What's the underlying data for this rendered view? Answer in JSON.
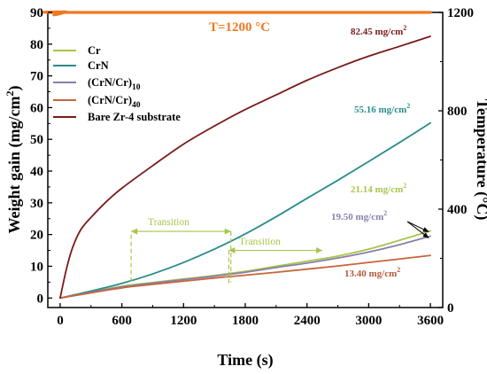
{
  "chart_data": {
    "type": "line",
    "x_axis": {
      "label": "Time (s)",
      "range": [
        -120,
        3720
      ],
      "ticks": [
        0,
        600,
        1200,
        1800,
        2400,
        3000,
        3600
      ]
    },
    "y_axis_left": {
      "label": "Weight gain (mg/cm",
      "label_sup": "2",
      "label_end": ")",
      "range": [
        -3,
        90
      ],
      "ticks": [
        0,
        10,
        20,
        30,
        40,
        50,
        60,
        70,
        80,
        90
      ]
    },
    "y_axis_right": {
      "label": "Temperature (°C)",
      "range": [
        0,
        1200
      ],
      "ticks": [
        0,
        400,
        800,
        1200
      ]
    },
    "grid": false,
    "legend_position": "top-left",
    "series": [
      {
        "name": "Cr",
        "color": "#a6c64a",
        "axis": "left",
        "x": [
          0,
          300,
          600,
          900,
          1200,
          1500,
          1800,
          2100,
          2400,
          2700,
          3000,
          3300,
          3600
        ],
        "y": [
          0,
          1.9,
          3.7,
          4.9,
          6.0,
          7.1,
          8.4,
          10.0,
          11.6,
          13.2,
          15.4,
          18.2,
          21.14
        ]
      },
      {
        "name": "CrN",
        "color": "#2a8c8c",
        "axis": "left",
        "x": [
          0,
          300,
          600,
          900,
          1200,
          1500,
          1800,
          2100,
          2400,
          2700,
          3000,
          3300,
          3600
        ],
        "y": [
          0,
          2.2,
          4.6,
          7.6,
          11.2,
          15.4,
          20.2,
          25.6,
          31.4,
          37.1,
          43.0,
          49.0,
          55.16
        ]
      },
      {
        "name": "(CrN/Cr)",
        "name_sub": "10",
        "color": "#8a7fa8",
        "axis": "left",
        "x": [
          0,
          300,
          600,
          900,
          1200,
          1500,
          1800,
          2100,
          2400,
          2700,
          3000,
          3300,
          3600
        ],
        "y": [
          0,
          1.8,
          3.5,
          4.7,
          5.8,
          6.9,
          8.1,
          9.6,
          11.0,
          12.6,
          14.5,
          16.8,
          19.5
        ]
      },
      {
        "name": "(CrN/Cr)",
        "name_sub": "40",
        "color": "#c8643a",
        "axis": "left",
        "x": [
          0,
          300,
          600,
          900,
          1200,
          1500,
          1800,
          2100,
          2400,
          2700,
          3000,
          3300,
          3600
        ],
        "y": [
          0,
          1.6,
          3.2,
          4.3,
          5.3,
          6.3,
          7.2,
          8.1,
          9.1,
          10.1,
          11.2,
          12.3,
          13.4
        ]
      },
      {
        "name": "Bare Zr-4 substrate",
        "color": "#7a1a1a",
        "axis": "left",
        "x": [
          0,
          60,
          120,
          200,
          300,
          450,
          600,
          900,
          1200,
          1500,
          1800,
          2100,
          2400,
          2700,
          3000,
          3300,
          3600
        ],
        "y": [
          0,
          9.0,
          15.8,
          21.5,
          25.4,
          30.4,
          34.6,
          41.7,
          48.5,
          54.2,
          59.4,
          64.0,
          68.6,
          72.6,
          76.2,
          79.3,
          82.45
        ]
      },
      {
        "name": "",
        "color": "#f07820",
        "axis": "right",
        "stroke": 3.2,
        "x": [
          -60,
          0,
          60,
          120,
          3600
        ],
        "y": [
          1190,
          1195,
          1202,
          1200,
          1200
        ]
      }
    ],
    "annotations": [
      {
        "text": "T=1200 °C",
        "color": "#f07820"
      },
      {
        "text": "82.45 mg/cm",
        "sup": "2",
        "color": "#7a1a1a"
      },
      {
        "text": "55.16 mg/cm",
        "sup": "2",
        "color": "#2a8c8c"
      },
      {
        "text": "21.14 mg/cm",
        "sup": "2",
        "color": "#a6c64a"
      },
      {
        "text": "19.50 mg/cm",
        "sup": "2",
        "color": "#8a7fa8"
      },
      {
        "text": "13.40 mg/cm",
        "sup": "2",
        "color": "#b05a3a"
      },
      {
        "text": "Transition",
        "color": "#a6c64a"
      },
      {
        "text": "Transition",
        "color": "#a6c64a"
      }
    ],
    "transitions": [
      {
        "from": 690,
        "to": 1660,
        "y": 21,
        "drop_from": 1660,
        "drop_to": 5
      },
      {
        "from": 1640,
        "to": 2550,
        "y": 15,
        "drop_from": 1640,
        "drop_to": 4.5
      }
    ]
  }
}
